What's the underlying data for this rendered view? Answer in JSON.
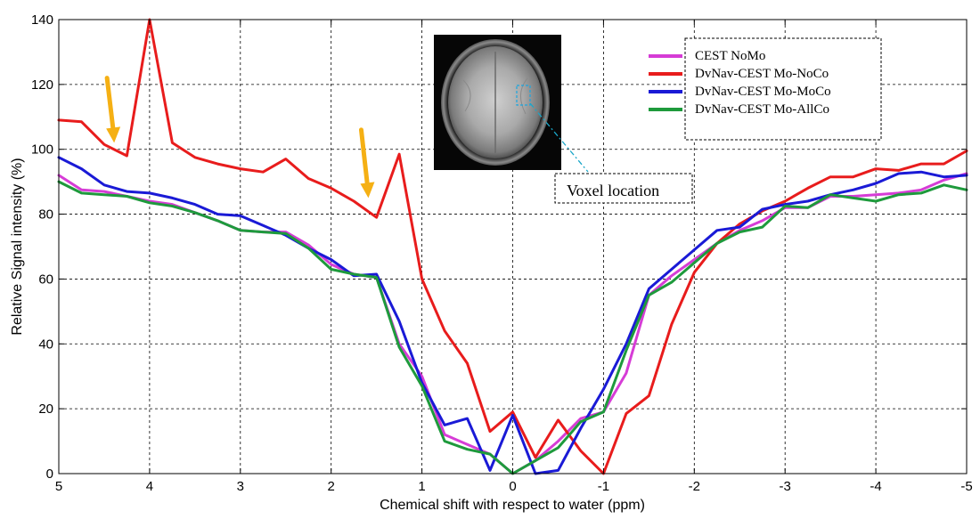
{
  "chart_data": {
    "type": "line",
    "title": "",
    "xlabel": "Chemical shift with respect to water (ppm)",
    "ylabel": "Relative Signal intensity (%)",
    "xlim": [
      5,
      -5
    ],
    "ylim": [
      0,
      140
    ],
    "x_reversed": true,
    "x_ticks": [
      5,
      4,
      3,
      2,
      1,
      0,
      -1,
      -2,
      -3,
      -4,
      -5
    ],
    "y_ticks": [
      0,
      20,
      40,
      60,
      80,
      100,
      120,
      140
    ],
    "grid": true,
    "legend_position": "top-right",
    "series": [
      {
        "name": "CEST NoMo",
        "color": "#d63cd6",
        "points": [
          [
            5,
            92
          ],
          [
            4.75,
            87.5
          ],
          [
            4.5,
            87
          ],
          [
            4.25,
            85.5
          ],
          [
            4,
            84
          ],
          [
            3.75,
            83
          ],
          [
            3.5,
            80.5
          ],
          [
            3.25,
            78
          ],
          [
            3,
            75
          ],
          [
            2.75,
            74.5
          ],
          [
            2.5,
            74.5
          ],
          [
            2.25,
            70.5
          ],
          [
            2,
            64.5
          ],
          [
            1.75,
            61.5
          ],
          [
            1.5,
            60.5
          ],
          [
            1.25,
            40
          ],
          [
            1,
            30
          ],
          [
            0.75,
            12
          ],
          [
            0.5,
            9
          ],
          [
            0.25,
            6
          ],
          [
            0,
            0
          ],
          [
            -0.25,
            4
          ],
          [
            -0.5,
            10
          ],
          [
            -0.75,
            17
          ],
          [
            -1,
            19
          ],
          [
            -1.25,
            31
          ],
          [
            -1.5,
            55
          ],
          [
            -1.75,
            61
          ],
          [
            -2,
            66
          ],
          [
            -2.25,
            71
          ],
          [
            -2.5,
            75
          ],
          [
            -2.75,
            78
          ],
          [
            -3,
            82
          ],
          [
            -3.25,
            82
          ],
          [
            -3.5,
            85.5
          ],
          [
            -3.75,
            85.5
          ],
          [
            -4,
            86
          ],
          [
            -4.25,
            86.5
          ],
          [
            -4.5,
            87.5
          ],
          [
            -4.75,
            90.5
          ],
          [
            -5,
            92.5
          ]
        ]
      },
      {
        "name": "DvNav-CEST Mo-NoCo",
        "color": "#e81c1c",
        "points": [
          [
            5,
            109
          ],
          [
            4.75,
            108.5
          ],
          [
            4.5,
            101.5
          ],
          [
            4.25,
            98
          ],
          [
            4,
            140
          ],
          [
            3.75,
            102
          ],
          [
            3.5,
            97.5
          ],
          [
            3.25,
            95.5
          ],
          [
            3,
            94
          ],
          [
            2.75,
            93
          ],
          [
            2.5,
            97
          ],
          [
            2.25,
            91
          ],
          [
            2,
            88
          ],
          [
            1.75,
            84
          ],
          [
            1.5,
            79
          ],
          [
            1.25,
            98.5
          ],
          [
            1,
            60
          ],
          [
            0.75,
            44
          ],
          [
            0.5,
            34
          ],
          [
            0.25,
            13
          ],
          [
            0,
            19
          ],
          [
            -0.25,
            5
          ],
          [
            -0.5,
            16.5
          ],
          [
            -0.75,
            7
          ],
          [
            -1,
            0
          ],
          [
            -1.25,
            18.5
          ],
          [
            -1.5,
            24
          ],
          [
            -1.75,
            46
          ],
          [
            -2,
            62
          ],
          [
            -2.25,
            71
          ],
          [
            -2.5,
            77
          ],
          [
            -2.75,
            81
          ],
          [
            -3,
            84
          ],
          [
            -3.25,
            88
          ],
          [
            -3.5,
            91.5
          ],
          [
            -3.75,
            91.5
          ],
          [
            -4,
            94
          ],
          [
            -4.25,
            93.5
          ],
          [
            -4.5,
            95.5
          ],
          [
            -4.75,
            95.5
          ],
          [
            -5,
            99.5
          ]
        ]
      },
      {
        "name": "DvNav-CEST Mo-MoCo",
        "color": "#1a1ad6",
        "points": [
          [
            5,
            97.5
          ],
          [
            4.75,
            94
          ],
          [
            4.5,
            89
          ],
          [
            4.25,
            87
          ],
          [
            4,
            86.5
          ],
          [
            3.75,
            85
          ],
          [
            3.5,
            83
          ],
          [
            3.25,
            80
          ],
          [
            3,
            79.5
          ],
          [
            2.75,
            76.5
          ],
          [
            2.5,
            73.5
          ],
          [
            2.25,
            69.5
          ],
          [
            2,
            66
          ],
          [
            1.75,
            61
          ],
          [
            1.5,
            61.5
          ],
          [
            1.25,
            47
          ],
          [
            1,
            28
          ],
          [
            0.75,
            15
          ],
          [
            0.5,
            17
          ],
          [
            0.25,
            1
          ],
          [
            0,
            18
          ],
          [
            -0.25,
            0
          ],
          [
            -0.5,
            1
          ],
          [
            -0.75,
            14
          ],
          [
            -1,
            26
          ],
          [
            -1.25,
            40
          ],
          [
            -1.5,
            57
          ],
          [
            -1.75,
            63
          ],
          [
            -2,
            69
          ],
          [
            -2.25,
            75
          ],
          [
            -2.5,
            76
          ],
          [
            -2.75,
            81.5
          ],
          [
            -3,
            83
          ],
          [
            -3.25,
            84
          ],
          [
            -3.5,
            86
          ],
          [
            -3.75,
            87.5
          ],
          [
            -4,
            89.5
          ],
          [
            -4.25,
            92.5
          ],
          [
            -4.5,
            93
          ],
          [
            -4.75,
            91.5
          ],
          [
            -5,
            92
          ]
        ]
      },
      {
        "name": "DvNav-CEST Mo-AllCo",
        "color": "#1e9a3c",
        "points": [
          [
            5,
            90
          ],
          [
            4.75,
            86.5
          ],
          [
            4.5,
            86
          ],
          [
            4.25,
            85.5
          ],
          [
            4,
            83.5
          ],
          [
            3.75,
            82.5
          ],
          [
            3.5,
            80.5
          ],
          [
            3.25,
            78
          ],
          [
            3,
            75
          ],
          [
            2.75,
            74.5
          ],
          [
            2.5,
            74
          ],
          [
            2.25,
            69.5
          ],
          [
            2,
            63
          ],
          [
            1.75,
            61.5
          ],
          [
            1.5,
            60.5
          ],
          [
            1.25,
            39
          ],
          [
            1,
            27
          ],
          [
            0.75,
            10
          ],
          [
            0.5,
            7.5
          ],
          [
            0.25,
            6
          ],
          [
            0,
            0
          ],
          [
            -0.25,
            4
          ],
          [
            -0.5,
            8
          ],
          [
            -0.75,
            16
          ],
          [
            -1,
            19
          ],
          [
            -1.25,
            38
          ],
          [
            -1.5,
            55
          ],
          [
            -1.75,
            59
          ],
          [
            -2,
            65
          ],
          [
            -2.25,
            71
          ],
          [
            -2.5,
            74.5
          ],
          [
            -2.75,
            76
          ],
          [
            -3,
            82.5
          ],
          [
            -3.25,
            82
          ],
          [
            -3.5,
            86
          ],
          [
            -3.75,
            85
          ],
          [
            -4,
            84
          ],
          [
            -4.25,
            86
          ],
          [
            -4.5,
            86.5
          ],
          [
            -4.75,
            89
          ],
          [
            -5,
            87.5
          ]
        ]
      }
    ],
    "annotations": [
      {
        "type": "arrow",
        "label": "",
        "color": "#f5b014",
        "x": 4.4,
        "y_from": 122,
        "y_to": 102
      },
      {
        "type": "arrow",
        "label": "",
        "color": "#f5b014",
        "x": 1.6,
        "y_from": 106,
        "y_to": 85
      },
      {
        "type": "callout",
        "label": "Voxel location",
        "color": "#1aa6c8"
      }
    ]
  },
  "inset_image": {
    "icon": "brain-mri-slice-image"
  }
}
